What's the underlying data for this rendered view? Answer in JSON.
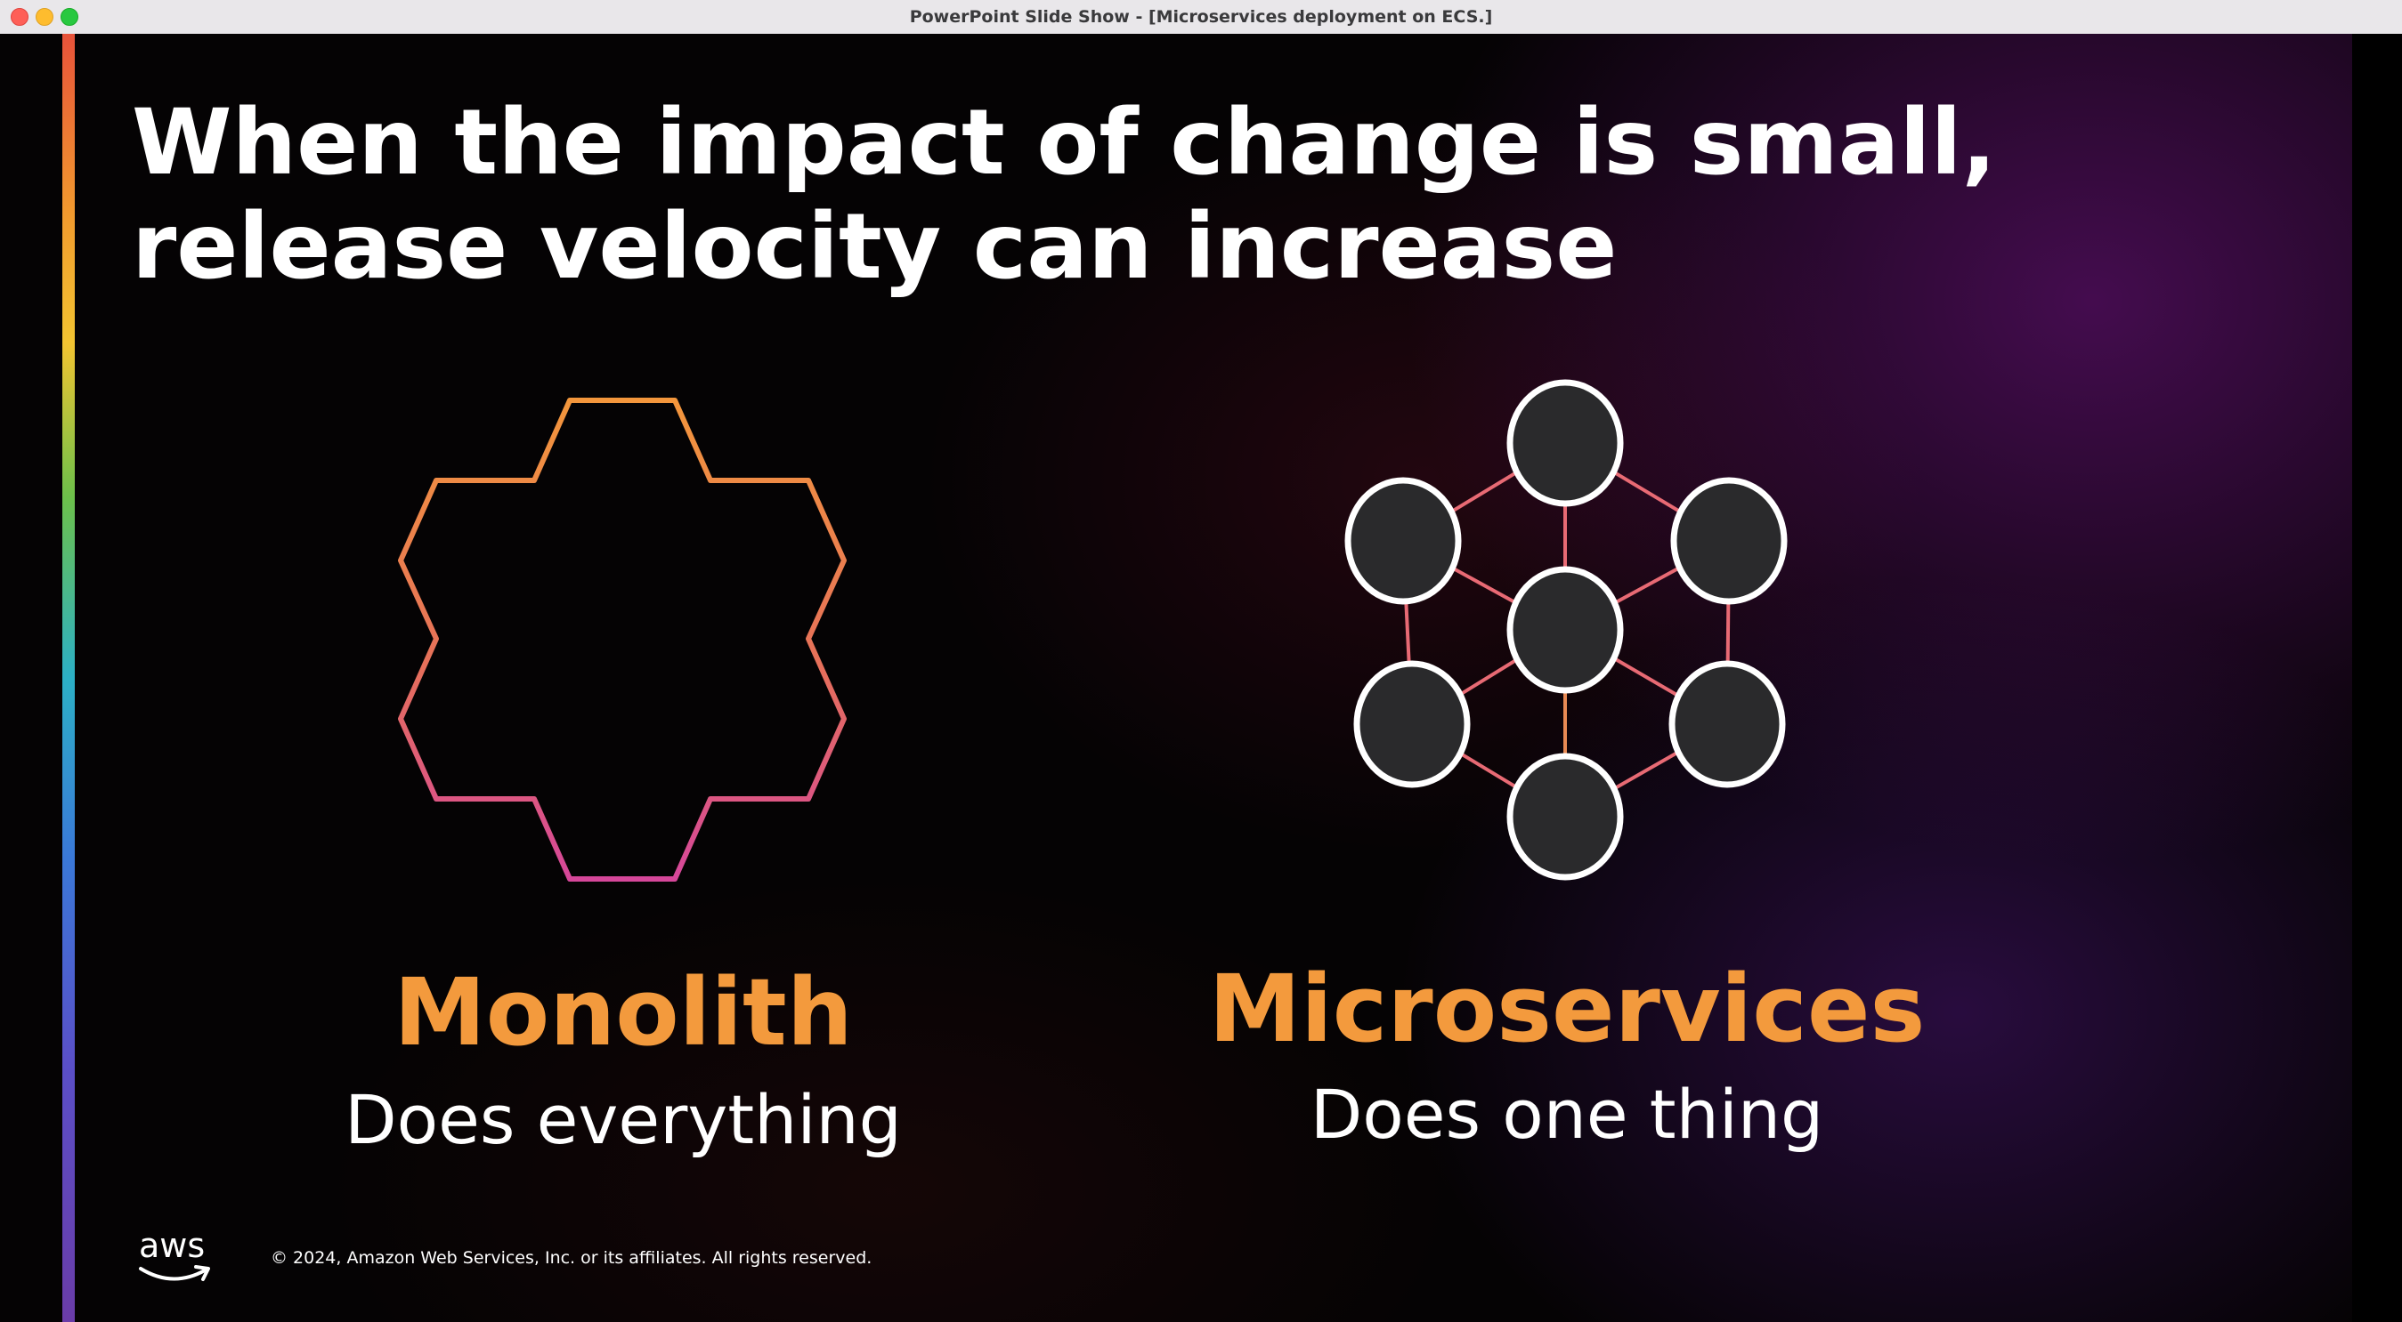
{
  "window": {
    "title": "PowerPoint Slide Show - [Microservices deployment on ECS.]"
  },
  "slide": {
    "headline": "When the impact of change is small, release velocity can increase",
    "monolith": {
      "title": "Monolith",
      "subtitle": "Does everything",
      "icon": "hexagon-cluster-outline-icon"
    },
    "microservices": {
      "title": "Microservices",
      "subtitle": "Does one thing",
      "icon": "service-network-icon"
    },
    "footer": {
      "logo_text": "aws",
      "copyright": "© 2024, Amazon Web Services, Inc. or its affiliates. All rights reserved."
    }
  },
  "colors": {
    "accent_orange": "#f39a3d",
    "node_fill": "#2a2a2c",
    "node_stroke": "#ffffff",
    "edge_color": "#e86a74"
  }
}
